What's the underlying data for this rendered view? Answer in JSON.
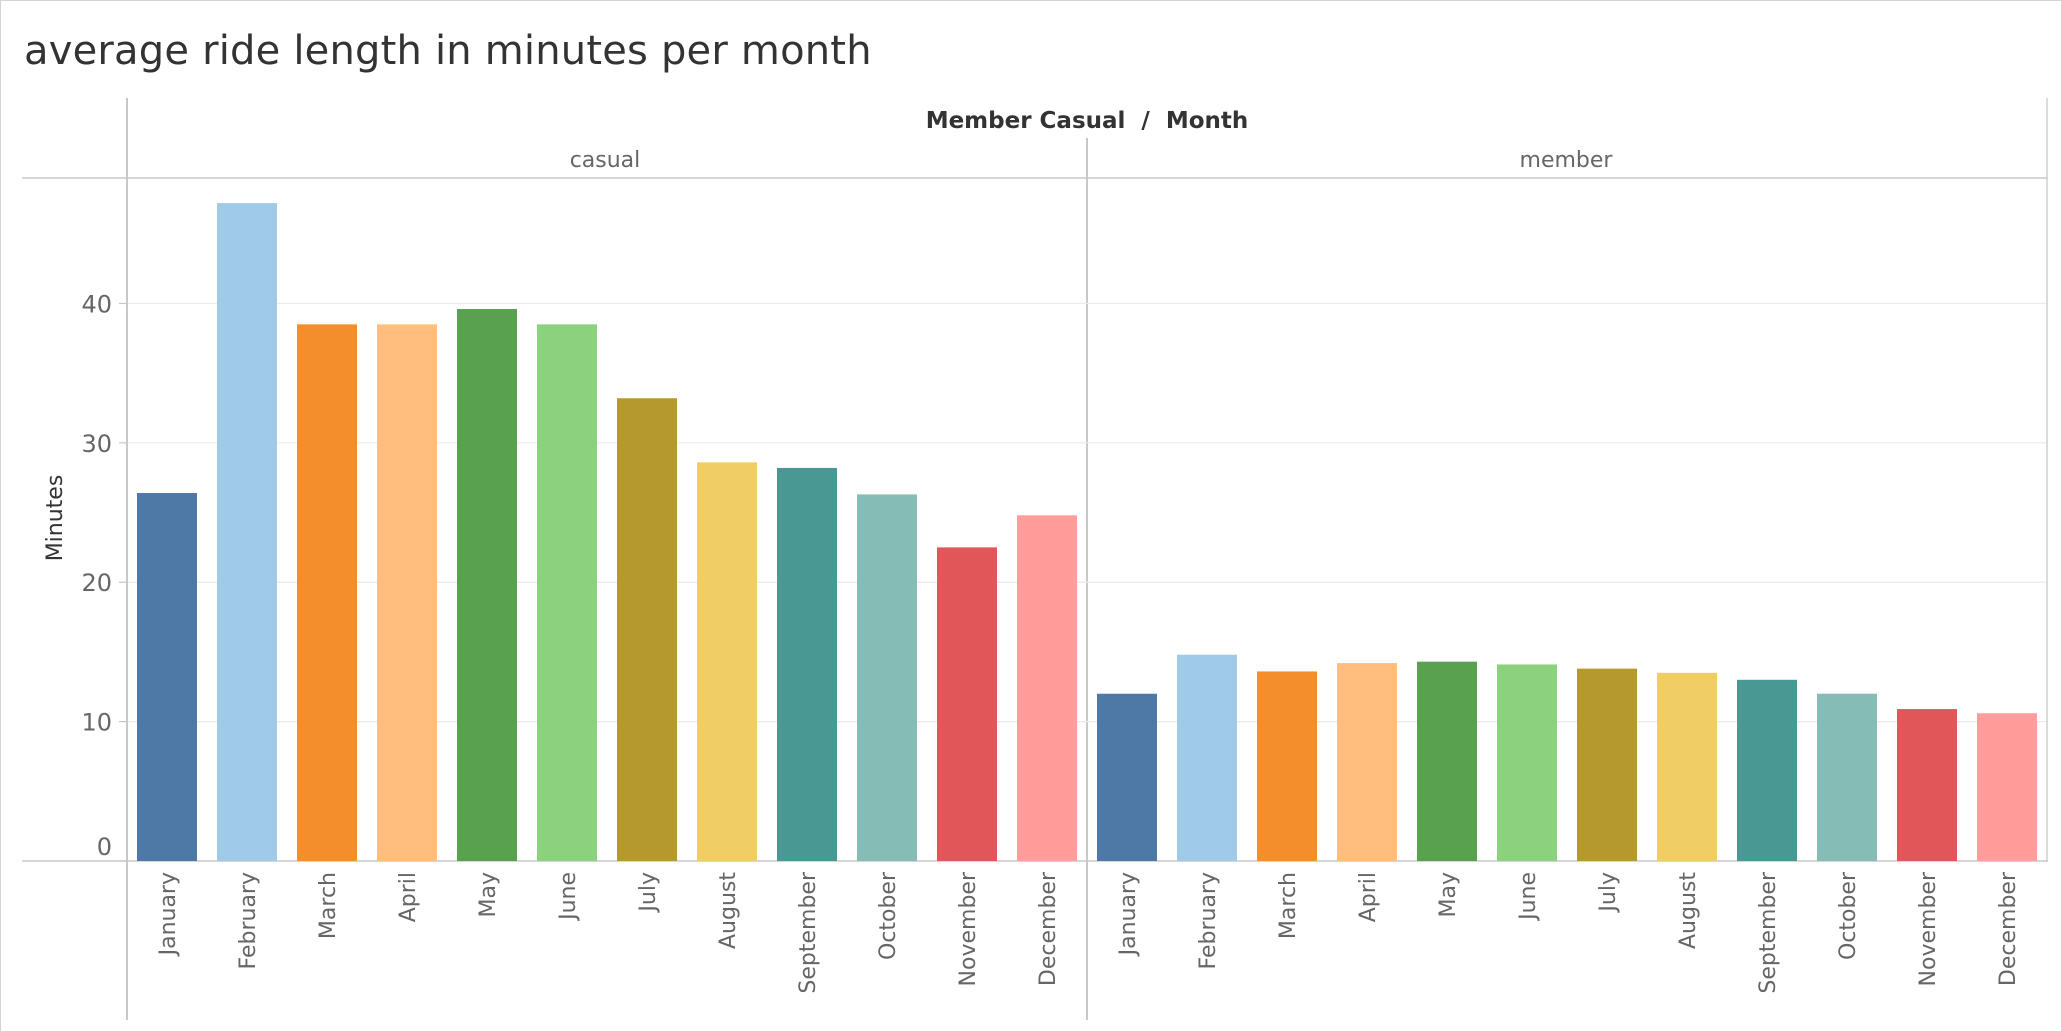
{
  "title": "average ride length in minutes per month",
  "chart_data": {
    "type": "bar",
    "title": "average ride length in minutes per month",
    "column_header": "Member Casual  /  Month",
    "ylabel": "Minutes",
    "ylim": [
      0,
      49
    ],
    "yticks": [
      0,
      10,
      20,
      30,
      40
    ],
    "grid": true,
    "panels": [
      {
        "name": "casual",
        "categories": [
          "January",
          "February",
          "March",
          "April",
          "May",
          "June",
          "July",
          "August",
          "September",
          "October",
          "November",
          "December"
        ],
        "values": [
          26.4,
          47.2,
          38.5,
          38.5,
          39.6,
          38.5,
          33.2,
          28.6,
          28.2,
          26.3,
          22.5,
          24.8
        ]
      },
      {
        "name": "member",
        "categories": [
          "January",
          "February",
          "March",
          "April",
          "May",
          "June",
          "July",
          "August",
          "September",
          "October",
          "November",
          "December"
        ],
        "values": [
          12.0,
          14.8,
          13.6,
          14.2,
          14.3,
          14.1,
          13.8,
          13.5,
          13.0,
          12.0,
          10.9,
          10.6
        ]
      }
    ],
    "month_colors": [
      "#4e79a7",
      "#a0cbe8",
      "#f28e2b",
      "#ffbe7d",
      "#59a14f",
      "#8cd17d",
      "#b6992d",
      "#f1ce63",
      "#499894",
      "#86bcb6",
      "#e15759",
      "#ff9d9a"
    ]
  }
}
